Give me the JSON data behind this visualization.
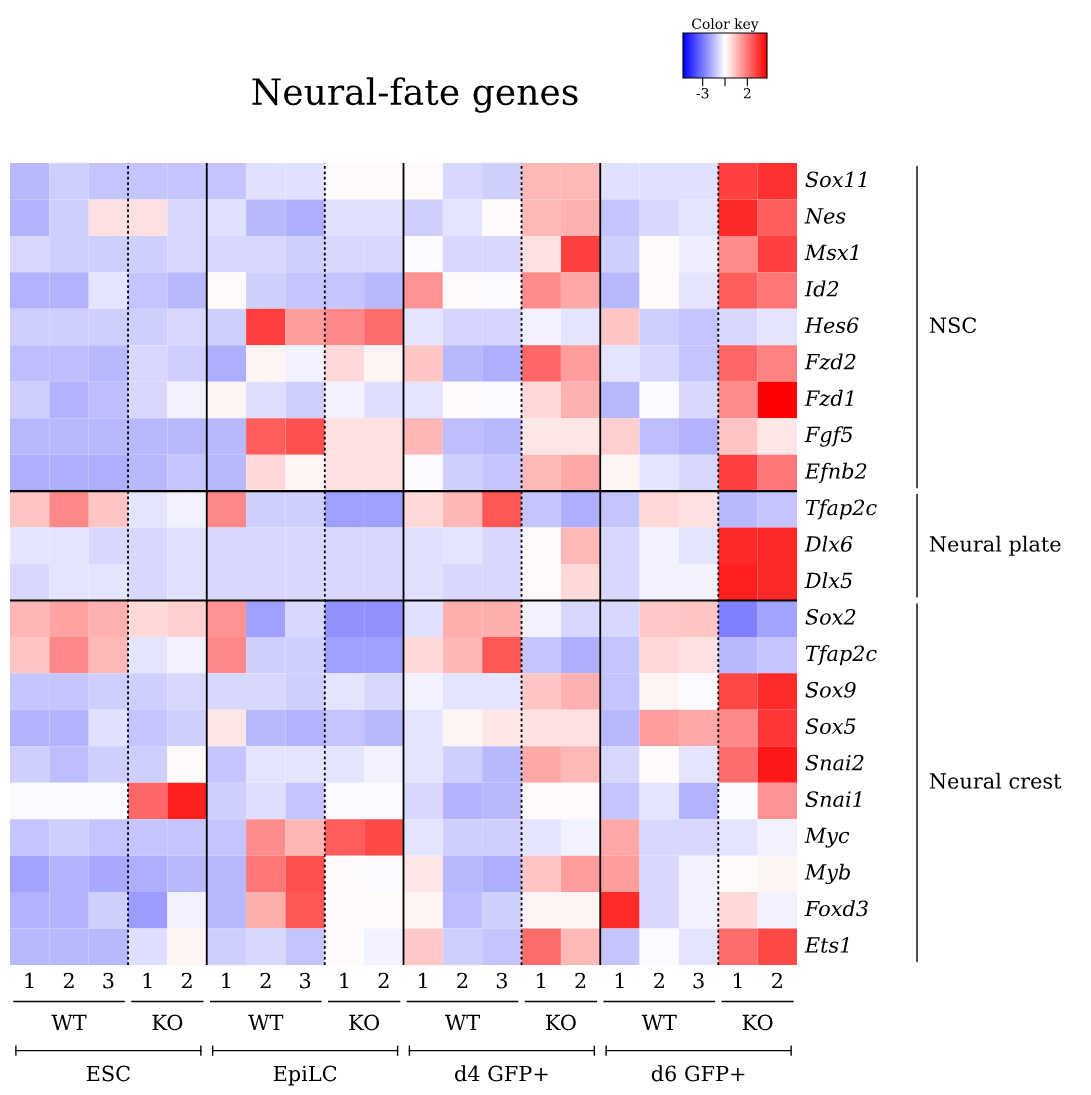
{
  "chart_data": {
    "type": "heatmap",
    "title": "Neural-fate genes",
    "clabel": "Color key",
    "categories": [
      "1",
      "2",
      "3",
      "1",
      "2",
      "1",
      "2",
      "3",
      "1",
      "2",
      "1",
      "2",
      "3",
      "1",
      "2",
      "1",
      "2",
      "3",
      "1",
      "2"
    ],
    "y_categories": [
      "Sox11",
      "Nes",
      "Msx1",
      "Id2",
      "Hes6",
      "Fzd2",
      "Fzd1",
      "Fgf5",
      "Efnb2",
      "Tfap2c",
      "Dlx6",
      "Dlx5",
      "Sox2",
      "Tfap2c",
      "Sox9",
      "Sox5",
      "Snai2",
      "Snai1",
      "Myc",
      "Myb",
      "Foxd3",
      "Ets1"
    ],
    "clim": [
      -5.2,
      4.2
    ],
    "cticks": [
      -3,
      {
        "value": -0.5,
        "label": null
      },
      2
    ],
    "annotations": [
      "WT",
      "KO",
      "WT",
      "KO",
      "WT",
      "KO",
      "WT",
      "KO",
      "ESC",
      "EpiLC",
      "d4 GFP+",
      "d6 GFP+",
      "NSC",
      "Neural plate",
      "Neural crest"
    ],
    "cells": [
      [
        -1.8,
        -1.4,
        -1.6,
        -1.6,
        -1.6,
        -1.6,
        -1.06,
        -1.06,
        -0.4,
        -0.4,
        -0.4,
        -1.2,
        -1.4,
        0.8,
        0.8,
        -1.06,
        -1.06,
        -1.06,
        3.0,
        3.3
      ],
      [
        -1.9,
        -1.4,
        0.06,
        0.06,
        -1.2,
        -1.06,
        -1.8,
        -2.0,
        -1.06,
        -1.06,
        -1.4,
        -1.0,
        -0.4,
        0.8,
        0.95,
        -1.6,
        -1.2,
        -1.0,
        3.45,
        2.5
      ],
      [
        -1.2,
        -1.4,
        -1.4,
        -1.4,
        -1.2,
        -1.2,
        -1.2,
        -1.4,
        -1.2,
        -1.2,
        -0.6,
        -1.2,
        -1.2,
        0.06,
        3.0,
        -1.4,
        -0.4,
        -0.8,
        1.6,
        3.0
      ],
      [
        -1.9,
        -1.9,
        -1.0,
        -1.6,
        -1.8,
        -0.4,
        -1.4,
        -1.6,
        -1.6,
        -1.8,
        1.5,
        -0.4,
        -0.6,
        1.6,
        1.1,
        -1.8,
        -0.4,
        -1.0,
        2.5,
        2.0
      ],
      [
        -1.4,
        -1.4,
        -1.4,
        -1.4,
        -1.2,
        -1.4,
        3.0,
        1.3,
        1.7,
        2.2,
        -1.0,
        -1.3,
        -1.3,
        -0.75,
        -1.0,
        0.6,
        -1.4,
        -1.6,
        -1.2,
        -1.0
      ],
      [
        -1.7,
        -1.7,
        -1.8,
        -1.2,
        -1.4,
        -2.0,
        -0.3,
        -0.75,
        0.2,
        -0.3,
        0.6,
        -1.8,
        -2.0,
        2.3,
        1.3,
        -1.0,
        -1.2,
        -1.6,
        2.3,
        1.8
      ],
      [
        -1.4,
        -1.9,
        -1.7,
        -1.2,
        -0.75,
        -0.3,
        -1.1,
        -1.4,
        -0.75,
        -1.1,
        -1.0,
        -0.4,
        -0.6,
        0.2,
        0.95,
        -1.8,
        -0.6,
        -1.2,
        1.6,
        4.2
      ],
      [
        -1.8,
        -1.8,
        -1.8,
        -1.8,
        -1.8,
        -1.8,
        2.5,
        2.7,
        0.06,
        0.06,
        0.85,
        -1.7,
        -1.8,
        -0.05,
        -0.05,
        0.4,
        -1.7,
        -1.9,
        0.6,
        -0.05
      ],
      [
        -2.0,
        -2.0,
        -2.0,
        -1.8,
        -1.6,
        -1.8,
        0.2,
        -0.3,
        0.06,
        0.06,
        -0.6,
        -1.4,
        -1.6,
        0.8,
        1.1,
        -0.3,
        -1.0,
        -1.2,
        3.0,
        2.0
      ],
      [
        0.6,
        1.7,
        0.6,
        -1.0,
        -0.75,
        1.7,
        -1.4,
        -1.4,
        -2.25,
        -2.25,
        0.2,
        0.85,
        2.6,
        -1.6,
        -2.0,
        -1.6,
        0.2,
        0.06,
        -1.8,
        -1.6
      ],
      [
        -1.0,
        -1.0,
        -1.2,
        -1.2,
        -1.06,
        -1.2,
        -1.2,
        -1.2,
        -1.2,
        -1.2,
        -1.06,
        -1.0,
        -1.2,
        -0.4,
        0.8,
        -1.2,
        -0.75,
        -1.0,
        3.45,
        3.45
      ],
      [
        -1.2,
        -1.0,
        -1.0,
        -1.2,
        -1.06,
        -1.2,
        -1.2,
        -1.2,
        -1.2,
        -1.2,
        -1.06,
        -1.2,
        -1.2,
        -0.4,
        0.2,
        -1.2,
        -0.75,
        -0.75,
        3.6,
        3.45
      ],
      [
        0.85,
        1.2,
        0.95,
        0.2,
        0.4,
        1.5,
        -2.25,
        -1.2,
        -2.5,
        -2.5,
        -1.06,
        1.0,
        1.0,
        -0.75,
        -1.2,
        -1.2,
        0.5,
        0.6,
        -2.85,
        -2.2
      ],
      [
        0.6,
        1.7,
        0.8,
        -1.0,
        -0.75,
        1.7,
        -1.4,
        -1.4,
        -2.25,
        -2.25,
        0.2,
        0.85,
        2.6,
        -1.6,
        -2.0,
        -1.6,
        0.2,
        0.06,
        -1.8,
        -1.6
      ],
      [
        -1.6,
        -1.6,
        -1.4,
        -1.4,
        -1.2,
        -1.2,
        -1.2,
        -1.4,
        -1.0,
        -1.2,
        -0.75,
        -1.0,
        -1.0,
        0.6,
        0.95,
        -1.6,
        -0.3,
        -0.6,
        2.85,
        3.4
      ],
      [
        -1.9,
        -1.9,
        -1.06,
        -1.6,
        -1.4,
        -0.05,
        -1.8,
        -1.9,
        -1.6,
        -1.8,
        -1.0,
        -0.3,
        -0.05,
        0.06,
        0.06,
        -1.8,
        1.3,
        1.1,
        1.7,
        3.2
      ],
      [
        -1.4,
        -1.7,
        -1.4,
        -1.4,
        -0.4,
        -1.6,
        -1.0,
        -1.0,
        -1.0,
        -0.75,
        -1.0,
        -1.4,
        -1.8,
        1.1,
        0.8,
        -1.2,
        -0.4,
        -1.0,
        2.2,
        3.75
      ],
      [
        -0.6,
        -0.6,
        -0.6,
        2.3,
        3.6,
        -1.4,
        -1.1,
        -1.6,
        -0.6,
        -0.6,
        -1.2,
        -1.9,
        -1.8,
        -0.4,
        -0.4,
        -1.6,
        -1.0,
        -1.9,
        -0.6,
        1.5
      ],
      [
        -1.6,
        -1.4,
        -1.6,
        -1.6,
        -1.6,
        -1.6,
        1.6,
        0.85,
        2.5,
        2.85,
        -1.0,
        -1.4,
        -1.4,
        -1.0,
        -0.75,
        1.1,
        -1.2,
        -1.2,
        -1.0,
        -0.75
      ],
      [
        -2.2,
        -1.9,
        -2.1,
        -2.0,
        -1.8,
        -1.8,
        2.0,
        2.7,
        -0.4,
        -0.6,
        -0.05,
        -1.8,
        -2.0,
        0.6,
        1.3,
        1.3,
        -1.2,
        -0.75,
        -0.4,
        -0.3
      ],
      [
        -1.9,
        -1.9,
        -1.4,
        -2.3,
        -0.75,
        -1.8,
        1.0,
        2.6,
        -0.4,
        -0.4,
        -0.3,
        -1.7,
        -1.4,
        -0.3,
        -0.3,
        3.4,
        -1.2,
        -0.75,
        0.2,
        -0.75
      ],
      [
        -1.8,
        -1.8,
        -1.8,
        -1.1,
        -0.3,
        -1.4,
        -1.2,
        -1.6,
        -0.4,
        -0.75,
        0.5,
        -1.4,
        -1.6,
        2.2,
        0.8,
        -1.6,
        -0.6,
        -1.0,
        2.2,
        2.85
      ]
    ]
  }
}
